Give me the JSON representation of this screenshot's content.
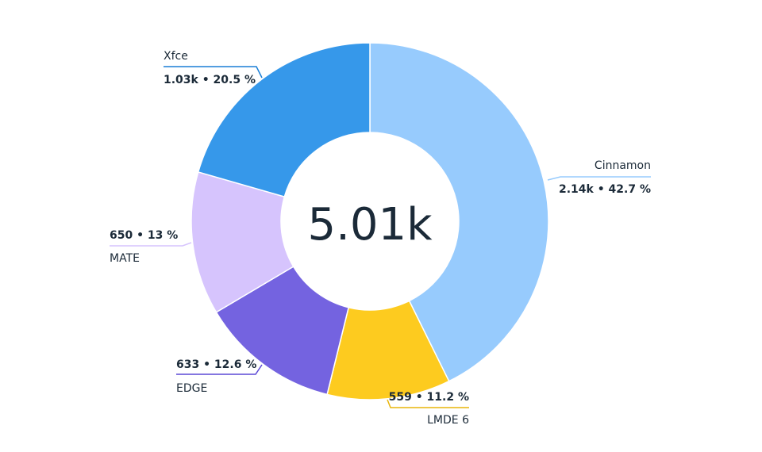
{
  "chart_data": {
    "type": "pie",
    "subtype": "donut",
    "center_label": "5.01k",
    "slices": [
      {
        "name": "Cinnamon",
        "value": 2140,
        "value_label": "2.14k • 42.7 %",
        "percent": 42.7,
        "color": "#97cbfd"
      },
      {
        "name": "LMDE 6",
        "value": 559,
        "value_label": "559 • 11.2 %",
        "percent": 11.2,
        "color": "#fdcb1f"
      },
      {
        "name": "EDGE",
        "value": 633,
        "value_label": "633 • 12.6 %",
        "percent": 12.6,
        "color": "#7463e0"
      },
      {
        "name": "MATE",
        "value": 650,
        "value_label": "650 • 13 %",
        "percent": 13.0,
        "color": "#d6c4fd"
      },
      {
        "name": "Xfce",
        "value": 1030,
        "value_label": "1.03k • 20.5 %",
        "percent": 20.5,
        "color": "#3698ea"
      }
    ],
    "colors": {
      "label_text": "#1b2a38",
      "separator": "#ffffff",
      "lmde_leader": "#e9b50a",
      "edge_leader": "#5b49d6",
      "xfce_leader": "#1a7fd6"
    }
  }
}
